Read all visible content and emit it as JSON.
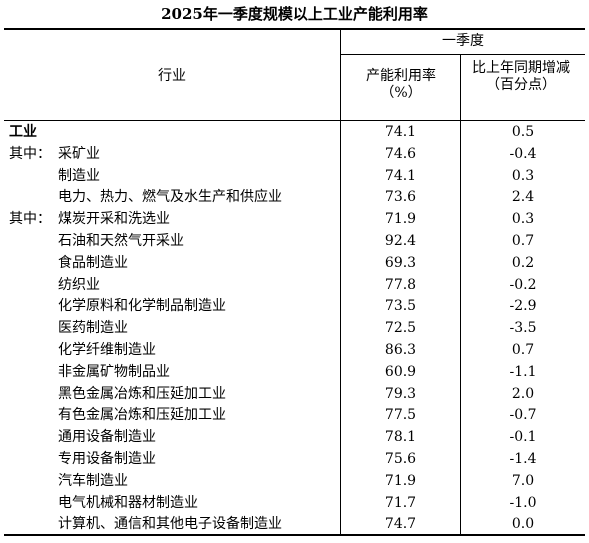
{
  "title": "2025年一季度规模以上工业产能利用率",
  "table": {
    "header": {
      "industry": "行业",
      "period": "一季度",
      "utilization": "产能利用率（%）",
      "change": "比上年同期增减（百分点）"
    },
    "rows": [
      {
        "prefix": "",
        "name": "工业",
        "value": "74.1",
        "change": "0.5"
      },
      {
        "prefix": "其中：",
        "name": "采矿业",
        "value": "74.6",
        "change": "-0.4"
      },
      {
        "prefix": "",
        "name": "制造业",
        "value": "74.1",
        "change": "0.3"
      },
      {
        "prefix": "",
        "name": "电力、热力、燃气及水生产和供应业",
        "value": "73.6",
        "change": "2.4"
      },
      {
        "prefix": "其中：",
        "name": "煤炭开采和洗选业",
        "value": "71.9",
        "change": "0.3"
      },
      {
        "prefix": "",
        "name": "石油和天然气开采业",
        "value": "92.4",
        "change": "0.7"
      },
      {
        "prefix": "",
        "name": "食品制造业",
        "value": "69.3",
        "change": "0.2"
      },
      {
        "prefix": "",
        "name": "纺织业",
        "value": "77.8",
        "change": "-0.2"
      },
      {
        "prefix": "",
        "name": "化学原料和化学制品制造业",
        "value": "73.5",
        "change": "-2.9"
      },
      {
        "prefix": "",
        "name": "医药制造业",
        "value": "72.5",
        "change": "-3.5"
      },
      {
        "prefix": "",
        "name": "化学纤维制造业",
        "value": "86.3",
        "change": "0.7"
      },
      {
        "prefix": "",
        "name": "非金属矿物制品业",
        "value": "60.9",
        "change": "-1.1"
      },
      {
        "prefix": "",
        "name": "黑色金属冶炼和压延加工业",
        "value": "79.3",
        "change": "2.0"
      },
      {
        "prefix": "",
        "name": "有色金属冶炼和压延加工业",
        "value": "77.5",
        "change": "-0.7"
      },
      {
        "prefix": "",
        "name": "通用设备制造业",
        "value": "78.1",
        "change": "-0.1"
      },
      {
        "prefix": "",
        "name": "专用设备制造业",
        "value": "75.6",
        "change": "-1.4"
      },
      {
        "prefix": "",
        "name": "汽车制造业",
        "value": "71.9",
        "change": "7.0"
      },
      {
        "prefix": "",
        "name": "电气机械和器材制造业",
        "value": "71.7",
        "change": "-1.0"
      },
      {
        "prefix": "",
        "name": "计算机、通信和其他电子设备制造业",
        "value": "74.7",
        "change": "0.0"
      }
    ]
  }
}
